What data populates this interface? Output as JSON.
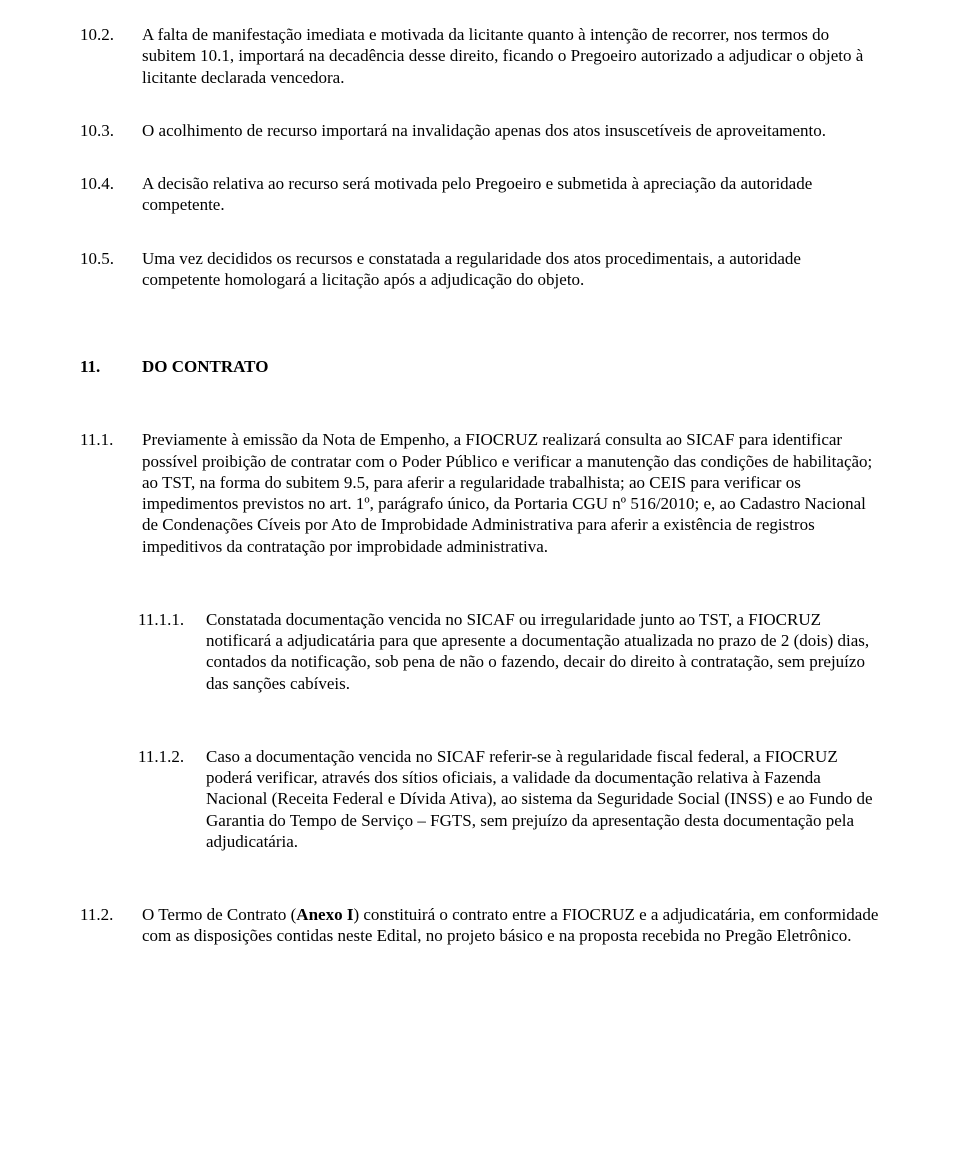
{
  "items": {
    "i10_2": {
      "num": "10.2.",
      "text_a": "A falta de manifestação imediata e motivada da licitante quanto à intenção de recorrer, nos termos do subitem 10.1, importará na decadência desse direito, ficando o Pregoeiro autorizado a adjudicar o objeto à licitante declarada vencedora."
    },
    "i10_3": {
      "num": "10.3.",
      "text_a": "O acolhimento de recurso importará na invalidação apenas dos atos insuscetíveis de aproveitamento."
    },
    "i10_4": {
      "num": "10.4.",
      "text_a": "A decisão relativa ao recurso será motivada pelo Pregoeiro e submetida à apreciação da autoridade competente."
    },
    "i10_5": {
      "num": "10.5.",
      "text_a": "Uma vez decididos os recursos e constatada a regularidade dos atos procedimentais, a autoridade competente homologará a licitação após a adjudicação do objeto."
    },
    "s11": {
      "num": "11.",
      "title": "DO CONTRATO"
    },
    "i11_1": {
      "num": "11.1.",
      "text_a": "Previamente à emissão da Nota de Empenho, a FIOCRUZ realizará consulta ao SICAF para identificar possível proibição de contratar com o Poder Público e verificar a manutenção das condições de habilitação; ao TST, na forma do subitem 9.5, para aferir a regularidade trabalhista; ao CEIS para verificar os impedimentos previstos no art. 1º, parágrafo único, da Portaria CGU nº 516/2010; e, ao Cadastro Nacional de Condenações Cíveis por Ato de Improbidade Administrativa para aferir a existência de registros impeditivos da contratação por improbidade administrativa."
    },
    "i11_1_1": {
      "num": "11.1.1.",
      "text_a": "Constatada documentação vencida no SICAF ou irregularidade junto ao TST, a FIOCRUZ notificará a adjudicatária para que apresente a documentação atualizada no prazo de 2 (dois) dias, contados da notificação, sob pena de não o fazendo, decair do direito à contratação, sem prejuízo das sanções cabíveis."
    },
    "i11_1_2": {
      "num": "11.1.2.",
      "text_a": "Caso a documentação vencida no SICAF referir-se à regularidade fiscal federal, a FIOCRUZ poderá verificar, através dos sítios oficiais, a validade da documentação relativa à Fazenda Nacional (Receita Federal e Dívida Ativa), ao sistema da Seguridade Social (INSS) e ao Fundo de Garantia do Tempo de Serviço – FGTS, sem prejuízo da apresentação desta documentação pela adjudicatária."
    },
    "i11_2": {
      "num": "11.2.",
      "text_pre": "O Termo de Contrato (",
      "text_bold": "Anexo I",
      "text_post": ") constituirá o contrato entre a FIOCRUZ e a adjudicatária, em conformidade com as disposições contidas neste Edital, no projeto básico e na proposta recebida no Pregão Eletrônico."
    }
  }
}
